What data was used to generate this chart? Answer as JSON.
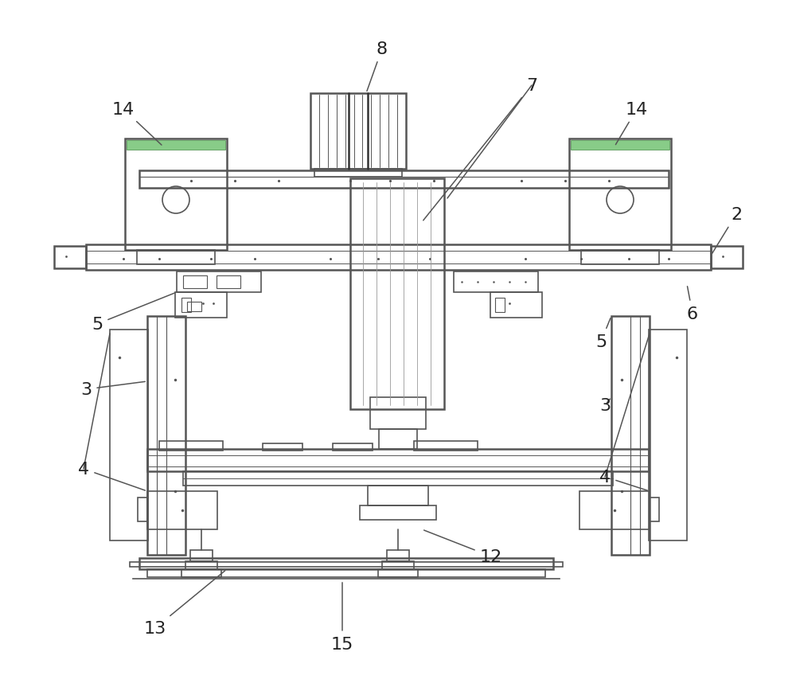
{
  "bg_color": "#ffffff",
  "lc": "#555555",
  "lw": 1.2,
  "lw2": 1.8,
  "fig_w": 10.0,
  "fig_h": 8.54
}
